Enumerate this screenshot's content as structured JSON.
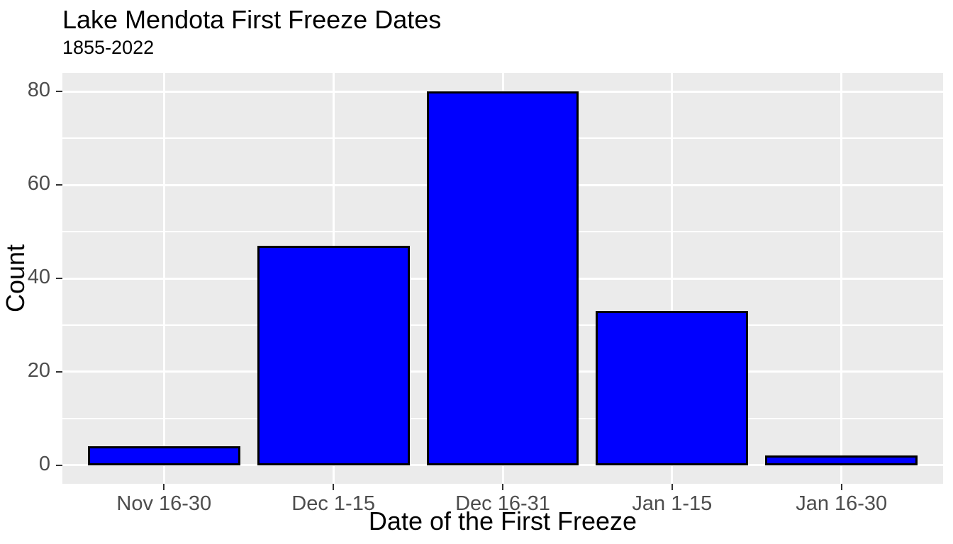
{
  "chart_data": {
    "type": "bar",
    "title": "Lake Mendota First Freeze Dates",
    "subtitle": "1855-2022",
    "xlabel": "Date of the First Freeze",
    "ylabel": "Count",
    "categories": [
      "Nov 16-30",
      "Dec 1-15",
      "Dec 16-31",
      "Jan 1-15",
      "Jan 16-30"
    ],
    "values": [
      4,
      47,
      80,
      33,
      2
    ],
    "ylim": [
      -4,
      84
    ],
    "yticks_major": [
      0,
      20,
      40,
      60,
      80
    ],
    "yticks_minor": [
      10,
      30,
      50,
      70
    ],
    "legend": "none",
    "grid": "on",
    "colors": {
      "bar_fill": "#0000FF",
      "bar_stroke": "#000000",
      "panel_background": "#EBEBEB",
      "gridline": "#FFFFFF",
      "tick_label": "#4D4D4D",
      "tick_mark": "#333333",
      "title_text": "#000000"
    }
  }
}
